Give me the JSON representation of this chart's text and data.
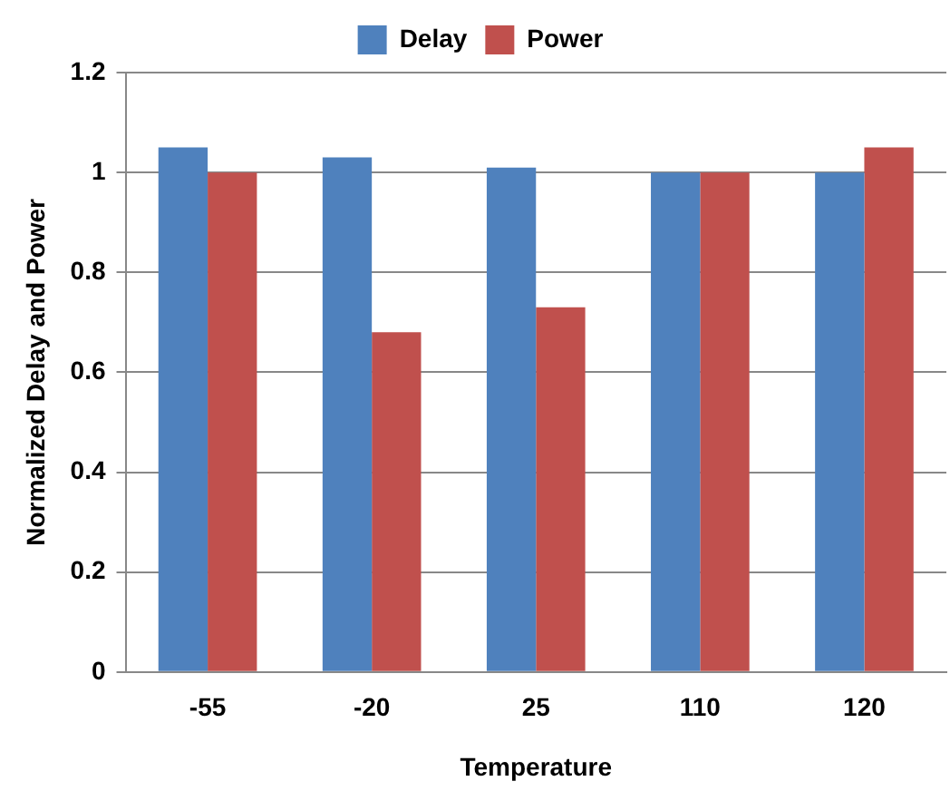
{
  "chart_data": {
    "type": "bar",
    "xlabel": "Temperature",
    "ylabel": "Normalized Delay and Power",
    "categories": [
      "-55",
      "-20",
      "25",
      "110",
      "120"
    ],
    "series": [
      {
        "name": "Delay",
        "color": "#4f81bd",
        "values": [
          1.05,
          1.03,
          1.01,
          1.0,
          1.0
        ]
      },
      {
        "name": "Power",
        "color": "#c0504d",
        "values": [
          1.0,
          0.68,
          0.73,
          1.0,
          1.05
        ]
      }
    ],
    "ylim": [
      0,
      1.2
    ],
    "yticks": [
      0,
      0.2,
      0.4,
      0.6,
      0.8,
      1,
      1.2
    ],
    "grid": "y",
    "legend": "top"
  }
}
